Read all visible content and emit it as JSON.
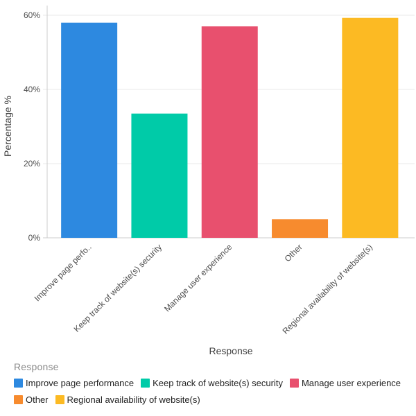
{
  "chart_data": {
    "type": "bar",
    "title": "",
    "xlabel": "Response",
    "ylabel": "Percentage %",
    "categories": [
      "Improve page performance",
      "Keep track of website(s) security",
      "Manage user experience",
      "Other",
      "Regional availability of website(s)"
    ],
    "axis_tick_labels": [
      "Improve page perfo..",
      "Keep track of website(s) security",
      "Manage user experience",
      "Other",
      "Regional availability of website(s)"
    ],
    "values": [
      58,
      33.5,
      57,
      5,
      59.3
    ],
    "bar_colors": [
      "#2D89E0",
      "#00CBA8",
      "#E8506E",
      "#F78B2E",
      "#FCBA23"
    ],
    "ylim": [
      0,
      60
    ],
    "yticks": [
      {
        "value": 0,
        "label": "0%"
      },
      {
        "value": 20,
        "label": "20%"
      },
      {
        "value": 40,
        "label": "40%"
      },
      {
        "value": 60,
        "label": "60%"
      }
    ],
    "grid": true,
    "legend_position": "bottom"
  },
  "legend": {
    "title": "Response",
    "items": [
      {
        "label": "Improve page performance",
        "color": "#2D89E0"
      },
      {
        "label": "Keep track of website(s) security",
        "color": "#00CBA8"
      },
      {
        "label": "Manage user experience",
        "color": "#E8506E"
      },
      {
        "label": "Other",
        "color": "#F78B2E"
      },
      {
        "label": "Regional availability of website(s)",
        "color": "#FCBA23"
      }
    ]
  },
  "colors": {
    "gridline": "#e9e9e9",
    "axis_line": "#cccccc",
    "tick_text": "#4d4d4d",
    "axis_title_text": "#404040",
    "legend_title_text": "#8c8c8c",
    "legend_item_text": "#1f1f1f",
    "background": "#ffffff"
  }
}
